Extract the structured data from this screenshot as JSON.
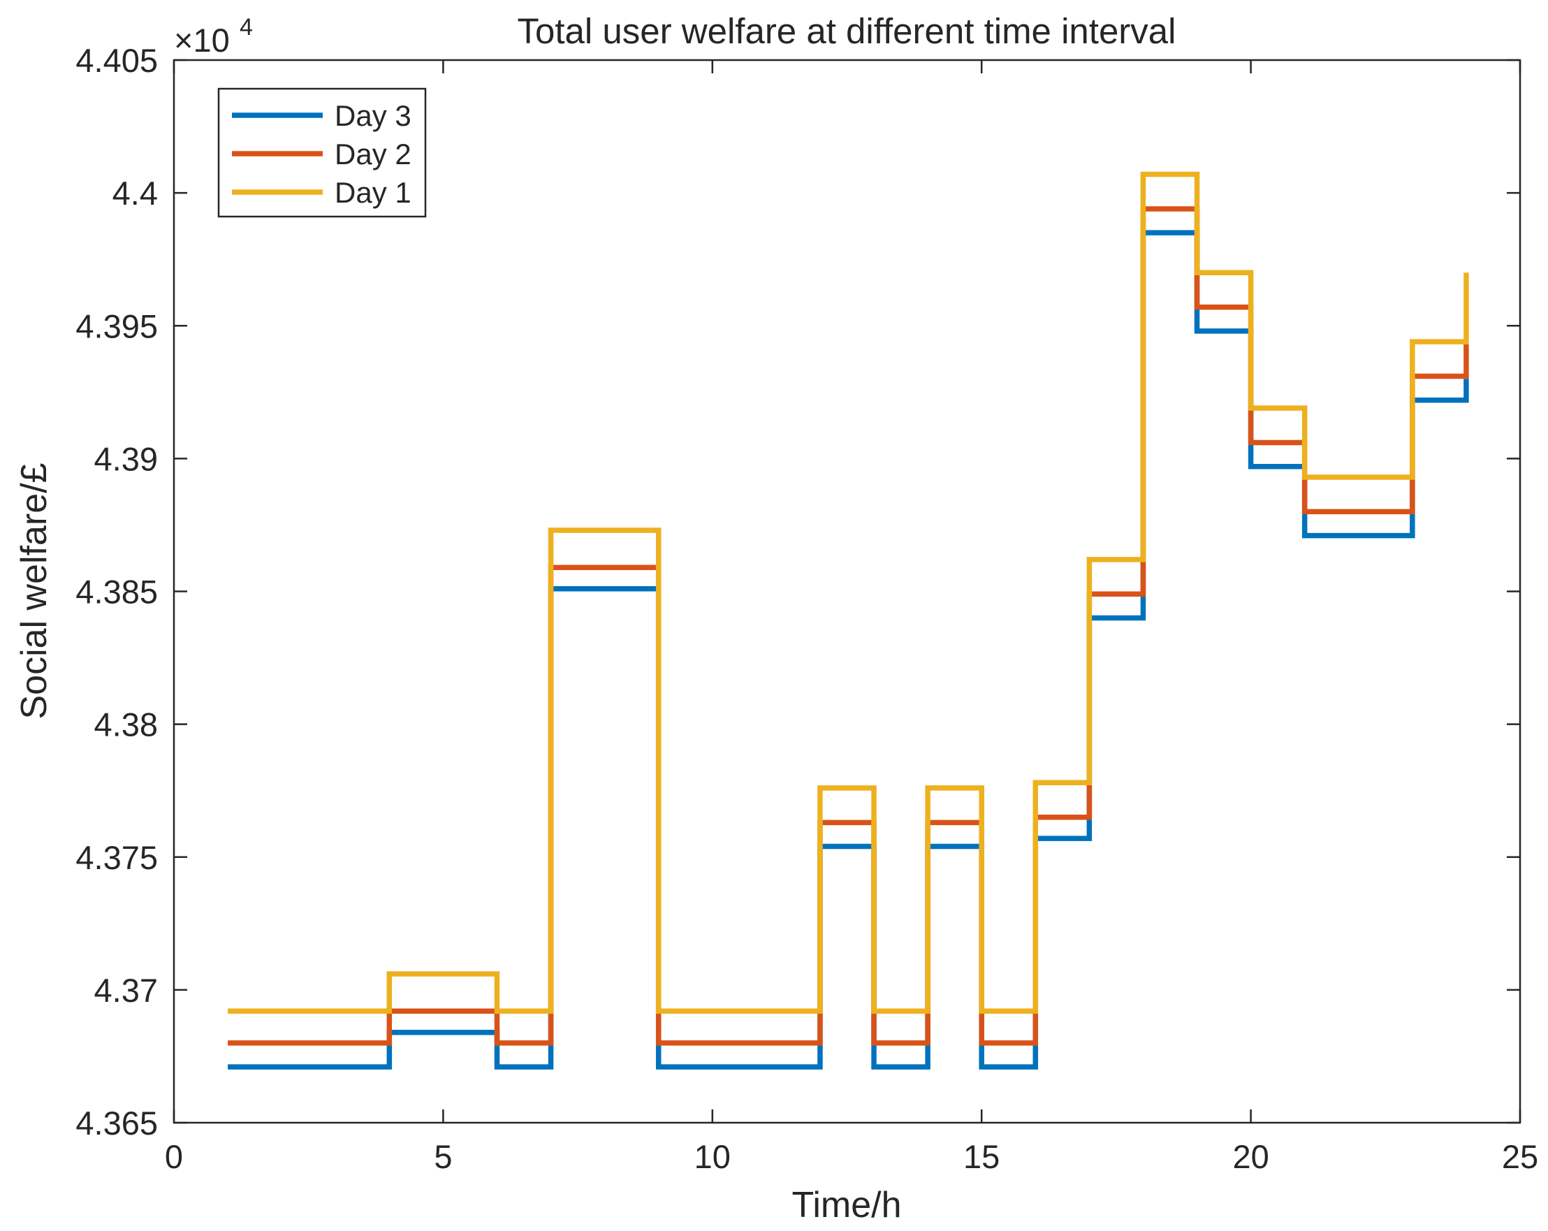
{
  "chart_data": {
    "type": "line",
    "step": "post",
    "title": "Total user welfare at different time interval",
    "xlabel": "Time/h",
    "ylabel": "Social welfare/£",
    "xlim": [
      0,
      25
    ],
    "ylim": [
      4.365,
      4.405
    ],
    "x_ticks": [
      0,
      5,
      10,
      15,
      20,
      25
    ],
    "x_tick_labels": [
      "0",
      "5",
      "10",
      "15",
      "20",
      "25"
    ],
    "y_ticks": [
      4.365,
      4.37,
      4.375,
      4.38,
      4.385,
      4.39,
      4.395,
      4.4,
      4.405
    ],
    "y_tick_labels": [
      "4.365",
      "4.37",
      "4.375",
      "4.38",
      "4.385",
      "4.39",
      "4.395",
      "4.4",
      "4.405"
    ],
    "y_exponent_base": "×10",
    "y_exponent_power": "4",
    "grid": false,
    "legend_position": "top-left",
    "x": [
      1,
      2,
      3,
      4,
      5,
      6,
      7,
      8,
      9,
      10,
      11,
      12,
      13,
      14,
      15,
      16,
      17,
      18,
      19,
      20,
      21,
      22,
      23,
      24
    ],
    "series": [
      {
        "name": "Day 3",
        "color": "#0072BD",
        "values": [
          4.3671,
          4.3671,
          4.3671,
          4.3684,
          4.3684,
          4.3671,
          4.3851,
          4.3851,
          4.3671,
          4.3671,
          4.3671,
          4.3754,
          4.3671,
          4.3754,
          4.3671,
          4.3757,
          4.384,
          4.3985,
          4.3948,
          4.3897,
          4.3871,
          4.3871,
          4.3922,
          4.393
        ]
      },
      {
        "name": "Day 2",
        "color": "#D95319",
        "values": [
          4.368,
          4.368,
          4.368,
          4.3692,
          4.3692,
          4.368,
          4.3859,
          4.3859,
          4.368,
          4.368,
          4.368,
          4.3763,
          4.368,
          4.3763,
          4.368,
          4.3765,
          4.3849,
          4.3994,
          4.3957,
          4.3906,
          4.388,
          4.388,
          4.3931,
          4.3943
        ]
      },
      {
        "name": "Day 1",
        "color": "#EDB120",
        "values": [
          4.3692,
          4.3692,
          4.3692,
          4.3706,
          4.3706,
          4.3692,
          4.3873,
          4.3873,
          4.3692,
          4.3692,
          4.3692,
          4.3776,
          4.3692,
          4.3776,
          4.3692,
          4.3778,
          4.3862,
          4.4007,
          4.397,
          4.3919,
          4.3893,
          4.3893,
          4.3944,
          4.397
        ]
      }
    ]
  }
}
